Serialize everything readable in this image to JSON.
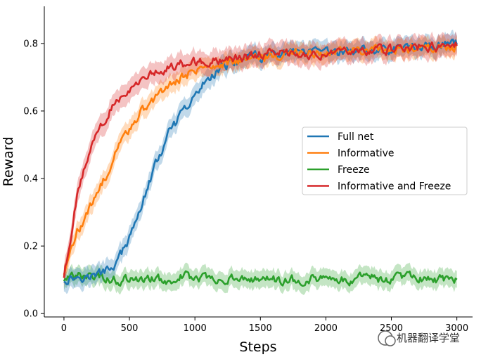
{
  "chart_data": {
    "type": "line",
    "title": "",
    "xlabel": "Steps",
    "ylabel": "Reward",
    "xlim": [
      -150,
      3120
    ],
    "ylim": [
      -0.01,
      0.91
    ],
    "xticks": [
      0,
      500,
      1000,
      1500,
      2000,
      2500,
      3000
    ],
    "yticks": [
      0.0,
      0.2,
      0.4,
      0.6,
      0.8
    ],
    "x_tick_labels": [
      "0",
      "500",
      "1000",
      "1500",
      "2000",
      "2500",
      "3000"
    ],
    "y_tick_labels": [
      "0.0",
      "0.2",
      "0.4",
      "0.6",
      "0.8"
    ],
    "grid": false,
    "legend_position": "center-right",
    "legend": [
      "Full net",
      "Informative",
      "Freeze",
      "Informative and Freeze"
    ],
    "series": [
      {
        "name": "Full net",
        "color": "#1f77b4",
        "x": [
          0,
          100,
          200,
          300,
          400,
          500,
          600,
          700,
          800,
          900,
          1000,
          1100,
          1200,
          1300,
          1400,
          1500,
          1600,
          1700,
          1800,
          1900,
          2000,
          2100,
          2200,
          2300,
          2400,
          2500,
          2600,
          2700,
          2800,
          2900,
          3000
        ],
        "y": [
          0.1,
          0.11,
          0.11,
          0.12,
          0.15,
          0.22,
          0.33,
          0.44,
          0.53,
          0.59,
          0.64,
          0.7,
          0.73,
          0.74,
          0.76,
          0.76,
          0.76,
          0.77,
          0.77,
          0.77,
          0.77,
          0.77,
          0.78,
          0.78,
          0.78,
          0.78,
          0.79,
          0.79,
          0.79,
          0.8,
          0.8
        ],
        "band": 0.03
      },
      {
        "name": "Informative",
        "color": "#ff7f0e",
        "x": [
          0,
          100,
          200,
          300,
          400,
          500,
          600,
          700,
          800,
          900,
          1000,
          1100,
          1200,
          1300,
          1400,
          1500,
          1600,
          1700,
          1800,
          1900,
          2000,
          2100,
          2200,
          2300,
          2400,
          2500,
          2600,
          2700,
          2800,
          2900,
          3000
        ],
        "y": [
          0.12,
          0.24,
          0.31,
          0.39,
          0.48,
          0.55,
          0.6,
          0.64,
          0.67,
          0.7,
          0.72,
          0.73,
          0.74,
          0.75,
          0.75,
          0.76,
          0.76,
          0.77,
          0.77,
          0.77,
          0.77,
          0.78,
          0.78,
          0.78,
          0.78,
          0.78,
          0.78,
          0.79,
          0.79,
          0.79,
          0.79
        ],
        "band": 0.03
      },
      {
        "name": "Freeze",
        "color": "#2ca02c",
        "x": [
          0,
          100,
          200,
          300,
          400,
          500,
          600,
          700,
          800,
          900,
          1000,
          1100,
          1200,
          1300,
          1400,
          1500,
          1600,
          1700,
          1800,
          1900,
          2000,
          2100,
          2200,
          2300,
          2400,
          2500,
          2600,
          2700,
          2800,
          2900,
          3000
        ],
        "y": [
          0.1,
          0.11,
          0.11,
          0.11,
          0.1,
          0.1,
          0.1,
          0.1,
          0.1,
          0.11,
          0.11,
          0.1,
          0.1,
          0.11,
          0.1,
          0.11,
          0.1,
          0.1,
          0.1,
          0.11,
          0.1,
          0.1,
          0.1,
          0.11,
          0.1,
          0.1,
          0.11,
          0.1,
          0.1,
          0.1,
          0.1
        ],
        "band": 0.028
      },
      {
        "name": "Informative and Freeze",
        "color": "#d62728",
        "x": [
          0,
          100,
          200,
          300,
          400,
          500,
          600,
          700,
          800,
          900,
          1000,
          1100,
          1200,
          1300,
          1400,
          1500,
          1600,
          1700,
          1800,
          1900,
          2000,
          2100,
          2200,
          2300,
          2400,
          2500,
          2600,
          2700,
          2800,
          2900,
          3000
        ],
        "y": [
          0.11,
          0.35,
          0.48,
          0.57,
          0.63,
          0.67,
          0.7,
          0.72,
          0.73,
          0.74,
          0.745,
          0.75,
          0.75,
          0.76,
          0.76,
          0.77,
          0.77,
          0.77,
          0.77,
          0.77,
          0.77,
          0.78,
          0.78,
          0.78,
          0.78,
          0.78,
          0.78,
          0.79,
          0.79,
          0.79,
          0.8
        ],
        "band": 0.035
      }
    ]
  },
  "watermark": {
    "text": "机器翻译学堂"
  }
}
